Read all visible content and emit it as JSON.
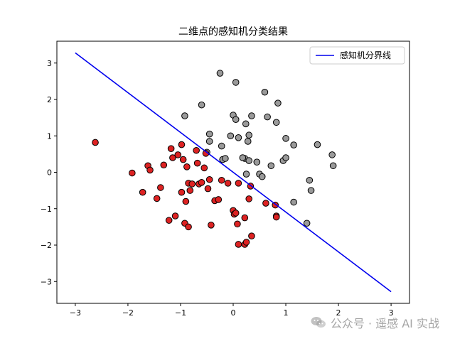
{
  "chart_data": {
    "type": "scatter",
    "title": "二维点的感知机分类结果",
    "xlabel": "",
    "ylabel": "",
    "xlim": [
      -3.35,
      3.35
    ],
    "ylim": [
      -3.6,
      3.6
    ],
    "xticks": [
      -3,
      -2,
      -1,
      0,
      1,
      2,
      3
    ],
    "yticks": [
      -3,
      -2,
      -1,
      0,
      1,
      2,
      3
    ],
    "legend_position": "top-right",
    "series": [
      {
        "color": "#9a9a9a",
        "points": [
          [
            -0.25,
            2.72
          ],
          [
            0.05,
            2.47
          ],
          [
            0.6,
            2.2
          ],
          [
            0.85,
            1.9
          ],
          [
            -0.92,
            1.55
          ],
          [
            -0.6,
            1.85
          ],
          [
            0.0,
            1.57
          ],
          [
            0.05,
            1.45
          ],
          [
            0.35,
            1.55
          ],
          [
            0.65,
            1.52
          ],
          [
            0.82,
            1.37
          ],
          [
            0.24,
            1.33
          ],
          [
            -0.45,
            1.05
          ],
          [
            -0.45,
            0.85
          ],
          [
            -0.05,
            1.0
          ],
          [
            0.1,
            0.95
          ],
          [
            0.3,
            1.02
          ],
          [
            0.28,
            0.85
          ],
          [
            1.0,
            0.93
          ],
          [
            1.15,
            0.75
          ],
          [
            1.6,
            0.76
          ],
          [
            1.88,
            0.48
          ],
          [
            -0.22,
            0.72
          ],
          [
            -0.5,
            0.55
          ],
          [
            0.22,
            0.38
          ],
          [
            0.3,
            0.32
          ],
          [
            -0.2,
            0.35
          ],
          [
            -0.15,
            0.38
          ],
          [
            0.18,
            0.4
          ],
          [
            0.45,
            0.28
          ],
          [
            0.72,
            0.18
          ],
          [
            0.95,
            0.32
          ],
          [
            1.0,
            0.4
          ],
          [
            1.9,
            0.18
          ],
          [
            0.25,
            -0.05
          ],
          [
            0.5,
            -0.05
          ],
          [
            0.55,
            -0.12
          ],
          [
            1.45,
            -0.22
          ],
          [
            1.48,
            -0.5
          ],
          [
            1.15,
            -0.82
          ],
          [
            1.4,
            -1.4
          ]
        ]
      },
      {
        "color": "#dd2222",
        "points": [
          [
            -2.62,
            0.82
          ],
          [
            -1.92,
            -0.02
          ],
          [
            -1.72,
            -0.55
          ],
          [
            -1.62,
            0.18
          ],
          [
            -1.58,
            0.06
          ],
          [
            -1.45,
            -0.72
          ],
          [
            -1.38,
            -0.42
          ],
          [
            -1.32,
            0.2
          ],
          [
            -1.22,
            -1.32
          ],
          [
            -1.18,
            0.65
          ],
          [
            -1.15,
            0.4
          ],
          [
            -1.1,
            -1.2
          ],
          [
            -1.05,
            0.48
          ],
          [
            -0.98,
            0.76
          ],
          [
            -0.95,
            0.35
          ],
          [
            -0.98,
            -0.55
          ],
          [
            -0.9,
            -0.8
          ],
          [
            -0.92,
            -1.4
          ],
          [
            -0.88,
            0.15
          ],
          [
            -0.85,
            -0.3
          ],
          [
            -0.85,
            -1.5
          ],
          [
            -0.82,
            -0.5
          ],
          [
            -0.78,
            -0.32
          ],
          [
            -0.7,
            0.6
          ],
          [
            -0.68,
            0.25
          ],
          [
            -0.65,
            -0.32
          ],
          [
            -0.6,
            -0.28
          ],
          [
            -0.55,
            0.12
          ],
          [
            -0.52,
            0.52
          ],
          [
            -0.48,
            -0.45
          ],
          [
            -0.45,
            -0.2
          ],
          [
            -0.42,
            -1.45
          ],
          [
            -0.35,
            -0.78
          ],
          [
            -0.28,
            -0.75
          ],
          [
            -0.22,
            -0.22
          ],
          [
            -0.1,
            -0.3
          ],
          [
            0.0,
            -1.05
          ],
          [
            0.02,
            -1.15
          ],
          [
            0.05,
            -1.12
          ],
          [
            0.08,
            -1.42
          ],
          [
            0.1,
            -0.3
          ],
          [
            0.1,
            -1.98
          ],
          [
            0.22,
            -1.98
          ],
          [
            0.22,
            -1.25
          ],
          [
            0.25,
            -1.92
          ],
          [
            0.3,
            -0.73
          ],
          [
            0.33,
            -0.38
          ],
          [
            0.35,
            -1.75
          ],
          [
            0.62,
            -0.85
          ],
          [
            0.8,
            -0.9
          ],
          [
            0.82,
            -1.2
          ],
          [
            0.82,
            -1.23
          ]
        ]
      }
    ],
    "lines": [
      {
        "name": "感知机分界线",
        "color": "#0000ee",
        "x": [
          -3,
          3
        ],
        "y": [
          3.28,
          -3.28
        ]
      }
    ]
  },
  "watermark": {
    "text": "公众号 · 遥感 AI 实战",
    "icon": "wechat-icon"
  }
}
